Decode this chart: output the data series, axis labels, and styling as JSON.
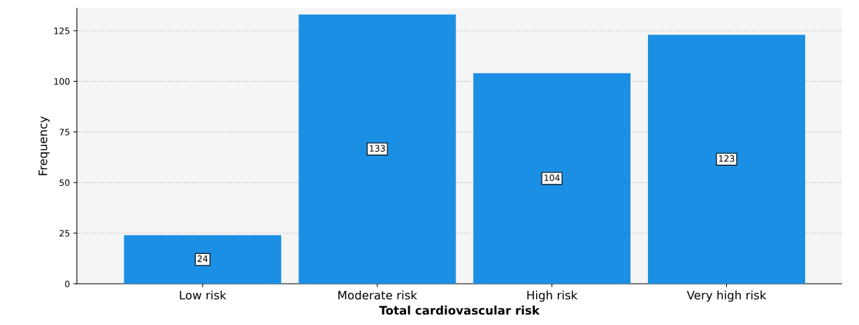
{
  "chart_data": {
    "type": "bar",
    "xlabel": "Total cardiovascular risk",
    "ylabel": "Frequency",
    "categories": [
      "Low risk",
      "Moderate risk",
      "High risk",
      "Very high risk"
    ],
    "values": [
      24,
      133,
      104,
      123
    ],
    "color": "#1a8fe3",
    "ylim": [
      0,
      136
    ],
    "yticks": [
      0,
      25,
      50,
      75,
      100,
      125
    ],
    "grid": "y",
    "data_labels": true
  }
}
